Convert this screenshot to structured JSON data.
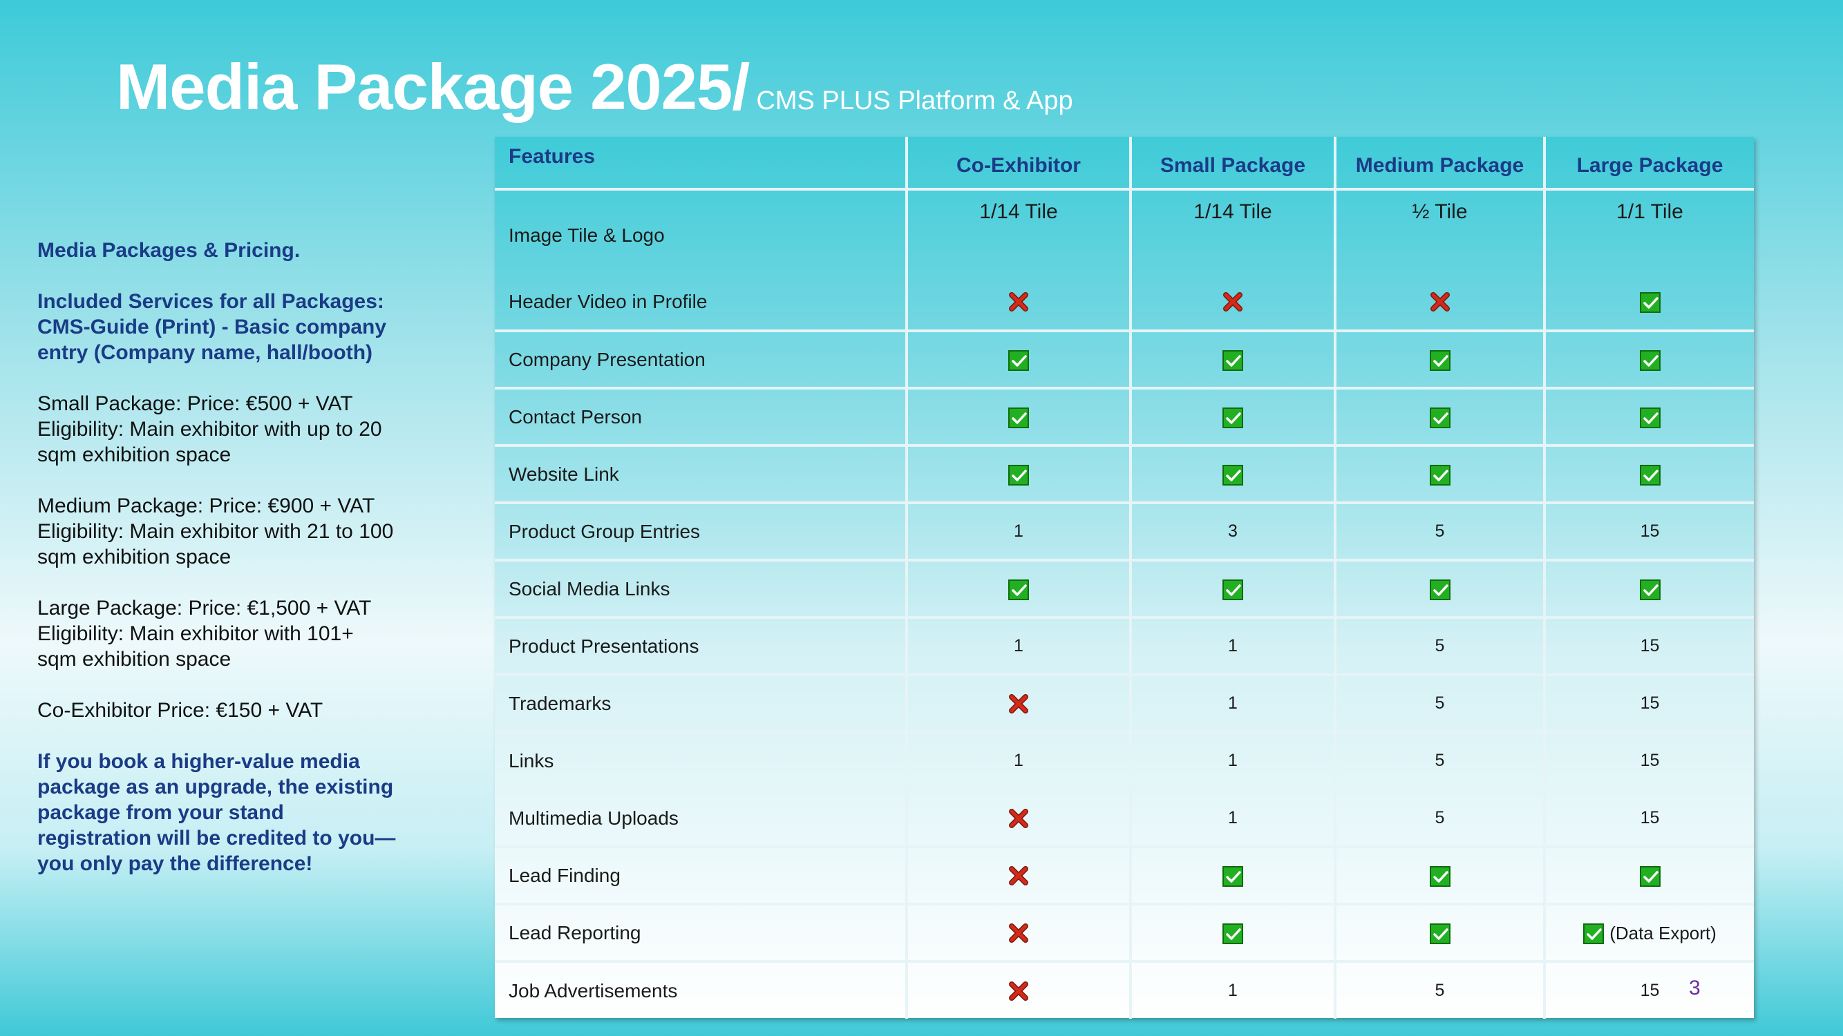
{
  "title": {
    "main": "Media Package 2025/",
    "sub": "CMS PLUS Platform & App"
  },
  "sidebar": {
    "heading": "Media Packages & Pricing.",
    "included": "Included Services for all Packages: CMS-Guide (Print) -  Basic company entry (Company name, hall/booth)",
    "small": "Small Package: Price: €500 + VAT Eligibility: Main exhibitor with up to 20 sqm exhibition space",
    "medium": "Medium Package: Price: €900 + VAT Eligibility: Main exhibitor with 21 to 100 sqm exhibition space",
    "large": "Large Package: Price: €1,500 + VAT Eligibility: Main exhibitor with 101+ sqm exhibition space",
    "co": "Co-Exhibitor Price: €150 + VAT",
    "upgrade": "If you book a higher-value media package as an upgrade, the existing package from your stand registration will be credited to you—you only pay the difference!"
  },
  "table": {
    "headers": [
      "Features",
      "Co-Exhibitor",
      "Small Package",
      "Medium Package",
      "Large Package"
    ],
    "image_row": {
      "label": "Image Tile & Logo",
      "values": [
        "1/14 Tile",
        "1/14 Tile",
        "½ Tile",
        "1/1 Tile"
      ]
    },
    "rows": [
      {
        "label": "Header Video in Profile",
        "values": [
          "cross",
          "cross",
          "cross",
          "check"
        ]
      },
      {
        "label": "Company Presentation",
        "values": [
          "check",
          "check",
          "check",
          "check"
        ]
      },
      {
        "label": "Contact Person",
        "values": [
          "check",
          "check",
          "check",
          "check"
        ]
      },
      {
        "label": "Website Link",
        "values": [
          "check",
          "check",
          "check",
          "check"
        ]
      },
      {
        "label": "Product Group Entries",
        "values": [
          "1",
          "3",
          "5",
          "15"
        ]
      },
      {
        "label": "Social Media Links",
        "values": [
          "check",
          "check",
          "check",
          "check"
        ]
      },
      {
        "label": "Product Presentations",
        "values": [
          "1",
          "1",
          "5",
          "15"
        ]
      },
      {
        "label": "Trademarks",
        "values": [
          "cross",
          "1",
          "5",
          "15"
        ]
      },
      {
        "label": "Links",
        "values": [
          "1",
          "1",
          "5",
          "15"
        ]
      },
      {
        "label": "Multimedia Uploads",
        "values": [
          "cross",
          "1",
          "5",
          "15"
        ]
      },
      {
        "label": "Lead Finding",
        "values": [
          "cross",
          "check",
          "check",
          "check"
        ]
      },
      {
        "label": "Lead Reporting",
        "values": [
          "cross",
          "check",
          "check",
          "check|(Data Export)"
        ]
      },
      {
        "label": "Job Advertisements",
        "values": [
          "cross",
          "1",
          "5",
          "15"
        ]
      }
    ]
  },
  "page_number": "3",
  "colors": {
    "heading_blue": "#1b3b86",
    "check_green": "#22b022",
    "cross_red": "#d42a1a"
  }
}
